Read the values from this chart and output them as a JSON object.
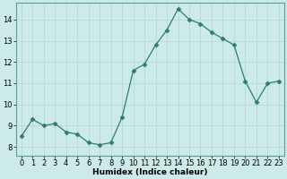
{
  "x": [
    0,
    1,
    2,
    3,
    4,
    5,
    6,
    7,
    8,
    9,
    10,
    11,
    12,
    13,
    14,
    15,
    16,
    17,
    18,
    19,
    20,
    21,
    22,
    23
  ],
  "y": [
    8.5,
    9.3,
    9.0,
    9.1,
    8.7,
    8.6,
    8.2,
    8.1,
    8.2,
    9.4,
    11.6,
    11.9,
    12.8,
    13.5,
    14.5,
    14.0,
    13.8,
    13.4,
    13.1,
    12.8,
    11.1,
    10.1,
    11.0,
    11.1
  ],
  "line_color": "#2e7d6e",
  "marker": "D",
  "marker_size": 2.5,
  "bg_color": "#cceae8",
  "grid_color": "#b8d8d5",
  "xlabel": "Humidex (Indice chaleur)",
  "ylim": [
    7.6,
    14.8
  ],
  "xlim": [
    -0.5,
    23.5
  ],
  "yticks": [
    8,
    9,
    10,
    11,
    12,
    13,
    14
  ],
  "xticks": [
    0,
    1,
    2,
    3,
    4,
    5,
    6,
    7,
    8,
    9,
    10,
    11,
    12,
    13,
    14,
    15,
    16,
    17,
    18,
    19,
    20,
    21,
    22,
    23
  ],
  "axis_fontsize": 6.5,
  "tick_fontsize": 6.0
}
